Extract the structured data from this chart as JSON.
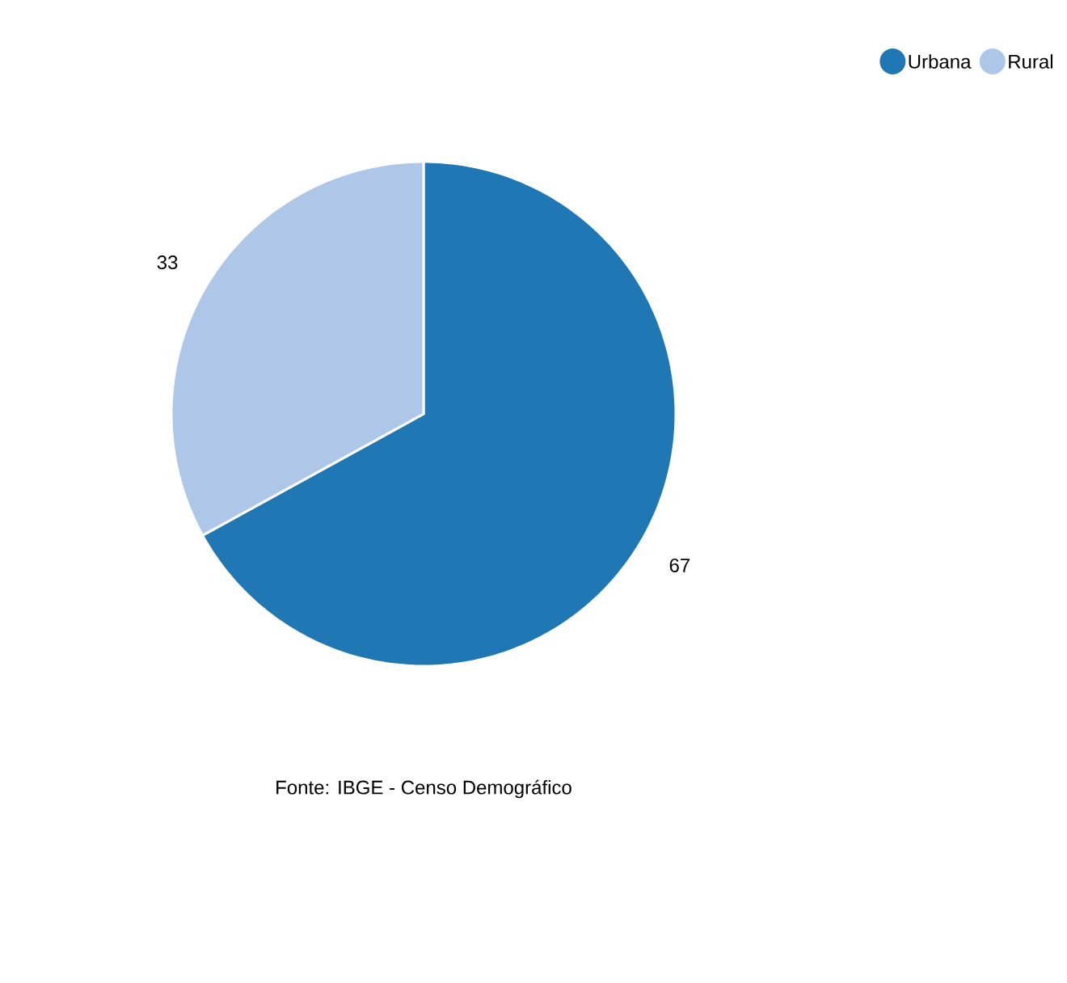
{
  "chart_data": {
    "type": "pie",
    "categories": [
      "Urbana",
      "Rural"
    ],
    "values": [
      67,
      33
    ],
    "colors": [
      "#1f77b4",
      "#aec7e8"
    ],
    "data_labels": true,
    "legend": "top right",
    "annotations": [
      "Fonte: IBGE - Censo Demográfico"
    ]
  }
}
